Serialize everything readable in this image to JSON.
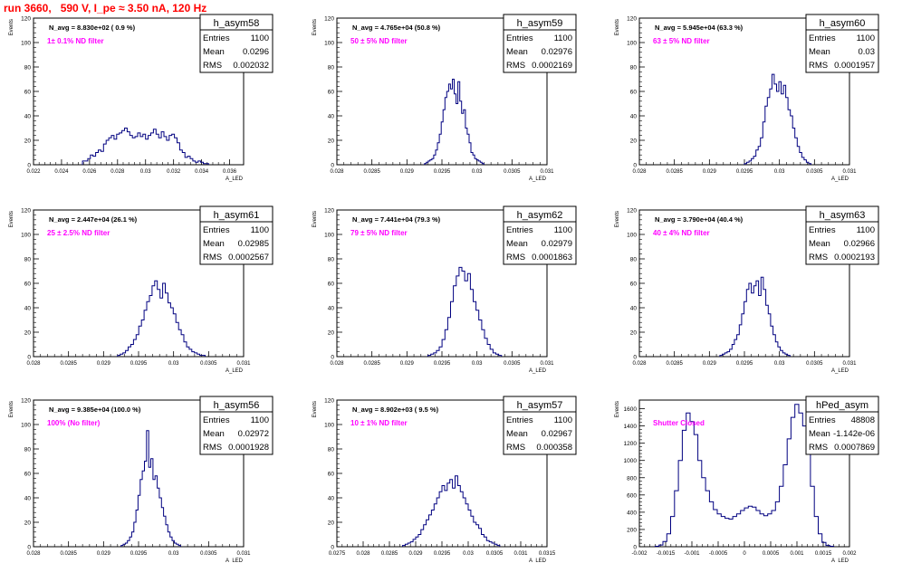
{
  "run_title": "run 3660,   590 V, I_pe ≈ 3.50 nA, 120 Hz",
  "colors": {
    "hist": "#000080",
    "filter_label": "#ff00ff",
    "run_title": "#ff0000",
    "frame": "#000000"
  },
  "stats_labels": {
    "entries": "Entries",
    "mean": "Mean",
    "rms": "RMS"
  },
  "axis_label_y": "Events",
  "axis_label_x": "A_LED",
  "chart_data": [
    {
      "type": "bar",
      "name": "h_asym58",
      "navg": "N_avg = 8.830e+02 ( 0.9 %)",
      "filter": "1± 0.1% ND filter",
      "entries": "1100",
      "mean": "0.0296",
      "rms": "0.002032",
      "xlim": [
        0.022,
        0.037
      ],
      "ylim": [
        0,
        120
      ],
      "xticks": [
        "0.022",
        "0.024",
        "0.026",
        "0.028",
        "0.03",
        "0.032",
        "0.034",
        "0.036"
      ],
      "xtick_vals": [
        0.022,
        0.024,
        0.026,
        0.028,
        0.03,
        0.032,
        0.034,
        0.036
      ],
      "yticks": [
        "0",
        "20",
        "40",
        "60",
        "80",
        "100",
        "120"
      ],
      "y_values": [
        3,
        3,
        5,
        8,
        7,
        10,
        12,
        11,
        17,
        20,
        22,
        24,
        21,
        25,
        26,
        28,
        30,
        27,
        24,
        22,
        23,
        26,
        23,
        25,
        21,
        24,
        26,
        29,
        25,
        22,
        27,
        23,
        20,
        24,
        25,
        22,
        18,
        12,
        10,
        6,
        7,
        5,
        3,
        2,
        3,
        2,
        1,
        1
      ],
      "bins_x": [
        0.0255,
        0.0265,
        0.0275,
        0.0285,
        0.0295,
        0.0305,
        0.0315,
        0.0325,
        0.0335,
        0.0345
      ]
    },
    {
      "type": "bar",
      "name": "h_asym59",
      "navg": "N_avg = 4.765e+04 (50.8 %)",
      "filter": "50 ± 5% ND filter",
      "entries": "1100",
      "mean": "0.02976",
      "rms": "0.0002169",
      "xlim": [
        0.028,
        0.031
      ],
      "ylim": [
        0,
        120
      ],
      "xticks": [
        "0.028",
        "0.0285",
        "0.029",
        "0.0295",
        "0.03",
        "0.0305",
        "0.031"
      ],
      "xtick_vals": [
        0.028,
        0.0285,
        0.029,
        0.0295,
        0.03,
        0.0305,
        0.031
      ],
      "yticks": [
        "0",
        "20",
        "40",
        "60",
        "80",
        "100",
        "120"
      ],
      "y_values": [
        1,
        2,
        3,
        4,
        5,
        8,
        12,
        18,
        25,
        35,
        45,
        55,
        60,
        66,
        62,
        70,
        58,
        50,
        68,
        52,
        42,
        45,
        30,
        25,
        18,
        10,
        8,
        5,
        4,
        3,
        2,
        1
      ],
      "bins_x": [
        0.02925,
        0.0301
      ]
    },
    {
      "type": "bar",
      "name": "h_asym60",
      "navg": "N_avg = 5.945e+04 (63.3 %)",
      "filter": "63 ± 5% ND filter",
      "entries": "1100",
      "mean": "0.03",
      "rms": "0.0001957",
      "xlim": [
        0.028,
        0.031
      ],
      "ylim": [
        0,
        120
      ],
      "xticks": [
        "0.028",
        "0.0285",
        "0.029",
        "0.0295",
        "0.03",
        "0.0305",
        "0.031"
      ],
      "xtick_vals": [
        0.028,
        0.0285,
        0.029,
        0.0295,
        0.03,
        0.0305,
        0.031
      ],
      "yticks": [
        "0",
        "20",
        "40",
        "60",
        "80",
        "100",
        "120"
      ],
      "y_values": [
        1,
        2,
        3,
        5,
        7,
        12,
        15,
        22,
        35,
        48,
        55,
        62,
        74,
        66,
        60,
        68,
        58,
        65,
        55,
        45,
        40,
        30,
        22,
        15,
        10,
        6,
        4,
        2,
        1
      ],
      "bins_x": [
        0.0295,
        0.03045
      ]
    },
    {
      "type": "bar",
      "name": "h_asym61",
      "navg": "N_avg = 2.447e+04 (26.1 %)",
      "filter": "25 ± 2.5% ND filter",
      "entries": "1100",
      "mean": "0.02985",
      "rms": "0.0002567",
      "xlim": [
        0.028,
        0.031
      ],
      "ylim": [
        0,
        120
      ],
      "xticks": [
        "0.028",
        "0.0285",
        "0.029",
        "0.0295",
        "0.03",
        "0.0305",
        "0.031"
      ],
      "xtick_vals": [
        0.028,
        0.0285,
        0.029,
        0.0295,
        0.03,
        0.0305,
        0.031
      ],
      "yticks": [
        "0",
        "20",
        "40",
        "60",
        "80",
        "100",
        "120"
      ],
      "y_values": [
        1,
        2,
        3,
        5,
        8,
        10,
        14,
        18,
        25,
        30,
        38,
        45,
        50,
        58,
        62,
        55,
        48,
        60,
        52,
        44,
        40,
        35,
        28,
        22,
        18,
        12,
        8,
        6,
        4,
        3,
        2,
        1,
        1
      ],
      "bins_x": [
        0.0292,
        0.03045
      ]
    },
    {
      "type": "bar",
      "name": "h_asym62",
      "navg": "N_avg = 7.441e+04 (79.3 %)",
      "filter": "79 ± 5% ND filter",
      "entries": "1100",
      "mean": "0.02979",
      "rms": "0.0001863",
      "xlim": [
        0.028,
        0.031
      ],
      "ylim": [
        0,
        120
      ],
      "xticks": [
        "0.028",
        "0.0285",
        "0.029",
        "0.0295",
        "0.03",
        "0.0305",
        "0.031"
      ],
      "xtick_vals": [
        0.028,
        0.0285,
        0.029,
        0.0295,
        0.03,
        0.0305,
        0.031
      ],
      "yticks": [
        "0",
        "20",
        "40",
        "60",
        "80",
        "100",
        "120"
      ],
      "y_values": [
        1,
        2,
        3,
        5,
        8,
        14,
        22,
        32,
        45,
        58,
        66,
        73,
        70,
        62,
        68,
        55,
        45,
        38,
        30,
        22,
        15,
        10,
        6,
        3,
        2,
        1
      ],
      "bins_x": [
        0.0293,
        0.03035
      ]
    },
    {
      "type": "bar",
      "name": "h_asym63",
      "navg": "N_avg = 3.790e+04 (40.4 %)",
      "filter": "40 ± 4% ND filter",
      "entries": "1100",
      "mean": "0.02966",
      "rms": "0.0002193",
      "xlim": [
        0.028,
        0.031
      ],
      "ylim": [
        0,
        120
      ],
      "xticks": [
        "0.028",
        "0.0285",
        "0.029",
        "0.0295",
        "0.03",
        "0.0305",
        "0.031"
      ],
      "xtick_vals": [
        0.028,
        0.0285,
        0.029,
        0.0295,
        0.03,
        0.0305,
        0.031
      ],
      "yticks": [
        "0",
        "20",
        "40",
        "60",
        "80",
        "100",
        "120"
      ],
      "y_values": [
        1,
        2,
        3,
        4,
        6,
        10,
        14,
        18,
        26,
        35,
        45,
        55,
        60,
        52,
        58,
        62,
        50,
        65,
        55,
        42,
        35,
        25,
        18,
        12,
        8,
        5,
        3,
        2,
        1
      ],
      "bins_x": [
        0.02915,
        0.03015
      ]
    },
    {
      "type": "bar",
      "name": "h_asym56",
      "navg": "N_avg = 9.385e+04 (100.0 %)",
      "filter": "100% (No filter)",
      "entries": "1100",
      "mean": "0.02972",
      "rms": "0.0001928",
      "xlim": [
        0.028,
        0.031
      ],
      "ylim": [
        0,
        120
      ],
      "xticks": [
        "0.028",
        "0.0285",
        "0.029",
        "0.0295",
        "0.03",
        "0.0305",
        "0.031"
      ],
      "xtick_vals": [
        0.028,
        0.0285,
        0.029,
        0.0295,
        0.03,
        0.0305,
        0.031
      ],
      "yticks": [
        "0",
        "20",
        "40",
        "60",
        "80",
        "100",
        "120"
      ],
      "y_values": [
        1,
        2,
        3,
        5,
        8,
        12,
        20,
        30,
        42,
        55,
        62,
        70,
        95,
        65,
        72,
        55,
        58,
        48,
        40,
        32,
        25,
        18,
        12,
        8,
        5,
        3,
        2,
        1
      ],
      "bins_x": [
        0.02925,
        0.0301
      ]
    },
    {
      "type": "bar",
      "name": "h_asym57",
      "navg": "N_avg = 8.902e+03 ( 9.5 %)",
      "filter": "10 ± 1% ND filter",
      "entries": "1100",
      "mean": "0.02967",
      "rms": "0.000358",
      "xlim": [
        0.0275,
        0.0315
      ],
      "ylim": [
        0,
        120
      ],
      "xticks": [
        "0.0275",
        "0.028",
        "0.0285",
        "0.029",
        "0.0295",
        "0.03",
        "0.0305",
        "0.031",
        "0.0315"
      ],
      "xtick_vals": [
        0.0275,
        0.028,
        0.0285,
        0.029,
        0.0295,
        0.03,
        0.0305,
        0.031,
        0.0315
      ],
      "yticks": [
        "0",
        "20",
        "40",
        "60",
        "80",
        "100",
        "120"
      ],
      "y_values": [
        1,
        2,
        3,
        4,
        6,
        8,
        10,
        14,
        18,
        22,
        26,
        30,
        35,
        40,
        45,
        50,
        46,
        52,
        55,
        48,
        58,
        50,
        45,
        40,
        35,
        30,
        25,
        20,
        18,
        15,
        10,
        8,
        5,
        4,
        3,
        2,
        1
      ],
      "bins_x": [
        0.02875,
        0.0306
      ]
    },
    {
      "type": "bar",
      "name": "hPed_asym",
      "navg": "",
      "filter": "Shutter Closed",
      "entries": "48808",
      "mean": "-1.142e-06",
      "rms": "0.0007869",
      "xlim": [
        -0.002,
        0.002
      ],
      "ylim": [
        0,
        1700
      ],
      "xticks": [
        "-0.002",
        "-0.0015",
        "-0.001",
        "-0.0005",
        "0",
        "0.0005",
        "0.001",
        "0.0015",
        "0.002"
      ],
      "xtick_vals": [
        -0.002,
        -0.0015,
        -0.001,
        -0.0005,
        0,
        0.0005,
        0.001,
        0.0015,
        0.002
      ],
      "yticks": [
        "0",
        "200",
        "400",
        "600",
        "800",
        "1000",
        "1200",
        "1400",
        "1600"
      ],
      "ytick_vals": [
        0,
        200,
        400,
        600,
        800,
        1000,
        1200,
        1400,
        1600
      ],
      "y_values": [
        5,
        20,
        60,
        150,
        350,
        650,
        1000,
        1350,
        1550,
        1450,
        1300,
        1000,
        800,
        650,
        520,
        430,
        380,
        350,
        330,
        320,
        350,
        380,
        420,
        450,
        470,
        460,
        420,
        380,
        360,
        380,
        420,
        520,
        700,
        950,
        1250,
        1500,
        1650,
        1550,
        1400,
        1100,
        700,
        350,
        150,
        50,
        15,
        5
      ],
      "bins_x": [
        -0.0017,
        0.0017
      ]
    }
  ]
}
